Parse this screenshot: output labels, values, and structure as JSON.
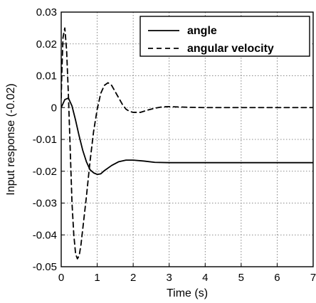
{
  "chart_data": {
    "type": "line",
    "title": "",
    "xlabel": "Time (s)",
    "ylabel": "Input response (-0.02)",
    "xlim": [
      0,
      7
    ],
    "ylim": [
      -0.05,
      0.03
    ],
    "xticks": [
      0,
      1,
      2,
      3,
      4,
      5,
      6,
      7
    ],
    "xtick_labels": [
      "0",
      "1",
      "2",
      "3",
      "4",
      "5",
      "6",
      "7"
    ],
    "yticks": [
      -0.05,
      -0.04,
      -0.03,
      -0.02,
      -0.01,
      0,
      0.01,
      0.02,
      0.03
    ],
    "ytick_labels": [
      "-0.05",
      "-0.04",
      "-0.03",
      "-0.02",
      "-0.01",
      "0",
      "0.01",
      "0.02",
      "0.03"
    ],
    "grid": true,
    "legend_position": "top-right",
    "series": [
      {
        "name": "angle",
        "line_style": "solid",
        "color": "#000000",
        "x": [
          0,
          0.1,
          0.2,
          0.3,
          0.4,
          0.5,
          0.6,
          0.7,
          0.8,
          0.9,
          1.0,
          1.1,
          1.2,
          1.4,
          1.6,
          1.8,
          2.0,
          2.3,
          2.6,
          3.0,
          4.0,
          5.0,
          6.0,
          7.0
        ],
        "y": [
          0,
          0.0025,
          0.003,
          0.0005,
          -0.004,
          -0.009,
          -0.0135,
          -0.017,
          -0.0195,
          -0.0205,
          -0.021,
          -0.0208,
          -0.0198,
          -0.0182,
          -0.017,
          -0.0165,
          -0.0165,
          -0.0168,
          -0.0172,
          -0.0173,
          -0.0173,
          -0.0173,
          -0.0173,
          -0.0173
        ]
      },
      {
        "name": "angular velocity",
        "line_style": "dashed",
        "color": "#000000",
        "x": [
          0,
          0.02,
          0.05,
          0.1,
          0.15,
          0.2,
          0.25,
          0.3,
          0.35,
          0.4,
          0.45,
          0.5,
          0.55,
          0.6,
          0.7,
          0.8,
          0.9,
          1.0,
          1.1,
          1.2,
          1.3,
          1.4,
          1.5,
          1.6,
          1.7,
          1.8,
          1.9,
          2.0,
          2.2,
          2.4,
          2.6,
          2.8,
          3.0,
          3.5,
          4.0,
          5.0,
          6.0,
          7.0
        ],
        "y": [
          0.003,
          0.012,
          0.022,
          0.025,
          0.018,
          0.004,
          -0.013,
          -0.03,
          -0.04,
          -0.046,
          -0.0475,
          -0.0465,
          -0.043,
          -0.038,
          -0.028,
          -0.017,
          -0.0075,
          -0.0005,
          0.0045,
          0.007,
          0.0078,
          0.007,
          0.005,
          0.003,
          0.001,
          -0.0005,
          -0.0012,
          -0.0015,
          -0.0015,
          -0.0008,
          -0.0002,
          0.0002,
          0.0003,
          0.0001,
          0.0,
          0.0,
          0.0,
          0.0
        ]
      }
    ]
  }
}
